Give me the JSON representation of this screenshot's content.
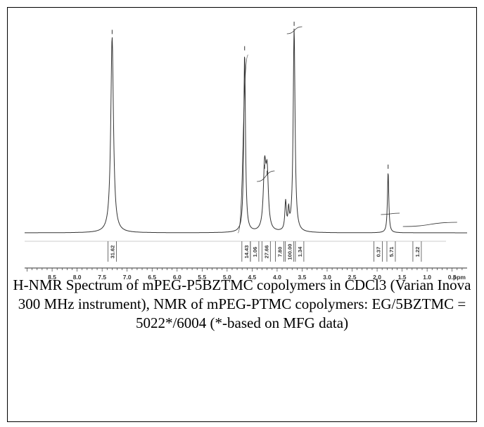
{
  "chart_data": {
    "type": "line",
    "title": "",
    "xlabel": "ppm",
    "ylabel": "",
    "xlim": [
      9.05,
      0.2
    ],
    "ylim": [
      0,
      1.02
    ],
    "x_reversed": true,
    "grid": false,
    "major_ticks": [
      "8.5",
      "8.0",
      "7.5",
      "7.0",
      "6.5",
      "6.0",
      "5.5",
      "5.0",
      "4.5",
      "4.0",
      "3.5",
      "3.0",
      "2.5",
      "2.0",
      "1.5",
      "1.0",
      "0.5"
    ],
    "peaks": [
      {
        "ppm": 7.3,
        "height": 0.96
      },
      {
        "ppm": 4.65,
        "height": 0.88
      },
      {
        "ppm": 4.25,
        "height": 0.3
      },
      {
        "ppm": 4.2,
        "height": 0.27
      },
      {
        "ppm": 3.83,
        "height": 0.14
      },
      {
        "ppm": 3.77,
        "height": 0.09
      },
      {
        "ppm": 3.66,
        "height": 1.0
      },
      {
        "ppm": 1.78,
        "height": 0.3
      }
    ],
    "integrals": [
      {
        "ppm": 7.3,
        "value": "31.62"
      },
      {
        "ppm": 4.62,
        "value": "14.43"
      },
      {
        "ppm": 4.45,
        "value": "1.06"
      },
      {
        "ppm": 4.22,
        "value": "27.66"
      },
      {
        "ppm": 3.95,
        "value": "7.80"
      },
      {
        "ppm": 3.75,
        "value": "100.00"
      },
      {
        "ppm": 3.55,
        "value": "1.34"
      },
      {
        "ppm": 1.98,
        "value": "0.37"
      },
      {
        "ppm": 1.72,
        "value": "5.71"
      },
      {
        "ppm": 1.2,
        "value": "1.22"
      }
    ]
  },
  "caption": "H-NMR Spectrum of mPEG-P5BZTMC copolymers in CDCl3 (Varian Inova 300 MHz instrument), NMR of mPEG-PTMC copolymers: EG/5BZTMC = 5022*/6004 (*-based on MFG data)",
  "colors": {
    "trace": "#333333",
    "frame": "#000000"
  }
}
